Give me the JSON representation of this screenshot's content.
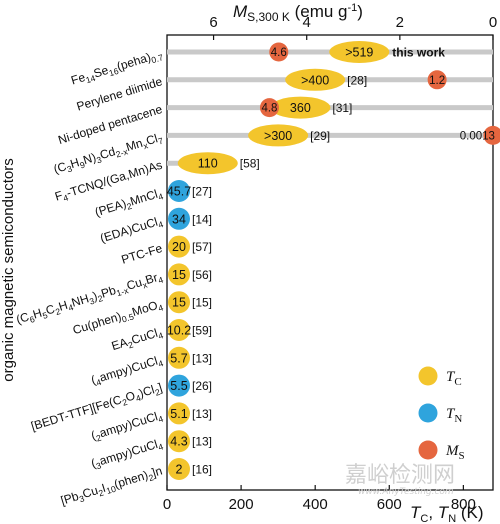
{
  "chart_data": {
    "type": "scatter",
    "top_axis_title": "M S,300 K (emu g-1)",
    "top_axis_ticks": [
      "6",
      "4",
      "2",
      "0"
    ],
    "bottom_axis_ticks": [
      "0",
      "200",
      "400",
      "600",
      "800"
    ],
    "bottom_axis_title": "T C, T N (K)",
    "ylabel": "organic magnetic semiconductors",
    "xlim": [
      0,
      880
    ],
    "ms_lim": [
      0,
      7
    ],
    "legend": [
      {
        "name": "T C",
        "color": "#f3c52c"
      },
      {
        "name": "T N",
        "color": "#2fa4dd"
      },
      {
        "name": "M S",
        "color": "#e5663f"
      }
    ],
    "highlight_label": "this work",
    "categories": [
      {
        "label": "Fe14Se16(peha)0.7",
        "value": 519,
        "value_text": ">519",
        "ref": "",
        "kind": "TC",
        "ms": 4.6,
        "ms_text": "4.6",
        "wide": true
      },
      {
        "label": "Perylene diimide",
        "value": 400,
        "value_text": ">400",
        "ref": "[28]",
        "kind": "TC",
        "ms": 1.2,
        "ms_text": "1.2",
        "wide": true
      },
      {
        "label": "Ni-doped pentacene",
        "value": 360,
        "value_text": "360",
        "ref": "[31]",
        "kind": "TC",
        "ms": 4.8,
        "ms_text": "4.8",
        "wide": true
      },
      {
        "label": "(C3H9N)3Cd2-xMnxCl7",
        "value": 300,
        "value_text": ">300",
        "ref": "[29]",
        "kind": "TC",
        "ms": 0.0013,
        "ms_text": "0.0013",
        "wide": true
      },
      {
        "label": "F4-TCNQ/(Ga,Mn)As",
        "value": 110,
        "value_text": "110",
        "ref": "[58]",
        "kind": "TC",
        "ms": null,
        "ms_text": "",
        "wide": true
      },
      {
        "label": "(PEA)2MnCl4",
        "value": 45.7,
        "value_text": "45.7",
        "ref": "[27]",
        "kind": "TN",
        "ms": null,
        "ms_text": "",
        "wide": false
      },
      {
        "label": "(EDA)CuCl4",
        "value": 34,
        "value_text": "34",
        "ref": "[14]",
        "kind": "TN",
        "ms": null,
        "ms_text": "",
        "wide": false
      },
      {
        "label": "PTC-Fe",
        "value": 20,
        "value_text": "20",
        "ref": "[57]",
        "kind": "TC",
        "ms": null,
        "ms_text": "",
        "wide": false
      },
      {
        "label": "(C6H5C2H4NH3)2Pb1-xCuxBr4",
        "value": 15,
        "value_text": "15",
        "ref": "[56]",
        "kind": "TC",
        "ms": null,
        "ms_text": "",
        "wide": false
      },
      {
        "label": "Cu(phen)0.5MoO4",
        "value": 15,
        "value_text": "15",
        "ref": "[15]",
        "kind": "TC",
        "ms": null,
        "ms_text": "",
        "wide": false
      },
      {
        "label": "EA2CuCl4",
        "value": 10.2,
        "value_text": "10.2",
        "ref": "[59]",
        "kind": "TC",
        "ms": null,
        "ms_text": "",
        "wide": false
      },
      {
        "label": "(4ampy)CuCl4",
        "value": 5.7,
        "value_text": "5.7",
        "ref": "[13]",
        "kind": "TC",
        "ms": null,
        "ms_text": "",
        "wide": false
      },
      {
        "label": "[BEDT-TTF][Fe(C2O4)Cl2]",
        "value": 5.5,
        "value_text": "5.5",
        "ref": "[26]",
        "kind": "TN",
        "ms": null,
        "ms_text": "",
        "wide": false
      },
      {
        "label": "(2ampy)CuCl4",
        "value": 5.1,
        "value_text": "5.1",
        "ref": "[13]",
        "kind": "TC",
        "ms": null,
        "ms_text": "",
        "wide": false
      },
      {
        "label": "(3ampy)CuCl4",
        "value": 4.3,
        "value_text": "4.3",
        "ref": "[13]",
        "kind": "TC",
        "ms": null,
        "ms_text": "",
        "wide": false
      },
      {
        "label": "[Pb3Cu2I10(phen)2]n",
        "value": 2,
        "value_text": "2",
        "ref": "[16]",
        "kind": "TC",
        "ms": null,
        "ms_text": "",
        "wide": false
      }
    ]
  },
  "watermark": {
    "text": "嘉峪检测网",
    "sub": "www.AnyTesting.com"
  }
}
